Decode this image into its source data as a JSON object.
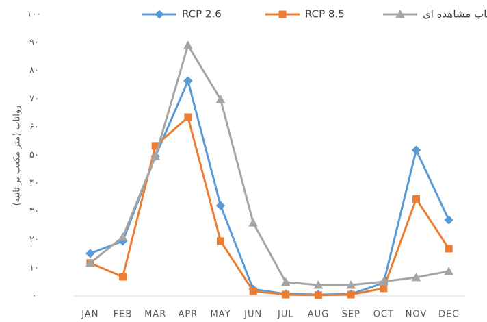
{
  "chart_data": {
    "type": "line",
    "y_label": "رواناب (متر مکعب بر ثانیه)",
    "categories": [
      "JAN",
      "FEB",
      "MAR",
      "APR",
      "MAY",
      "JUN",
      "JUL",
      "AUG",
      "SEP",
      "OCT",
      "NOV",
      "DEC"
    ],
    "series": [
      {
        "name": "RCP 2.6",
        "color": "#5b9bd5",
        "marker": "diamond",
        "values": [
          15.1,
          19.5,
          49.6,
          76.4,
          32.1,
          2.4,
          0.7,
          0.5,
          0.7,
          4.6,
          51.8,
          27
        ]
      },
      {
        "name": "RCP 8.5",
        "color": "#ed7d31",
        "marker": "square",
        "values": [
          11.7,
          6.8,
          53.3,
          63.5,
          19.5,
          1.7,
          0.5,
          0.3,
          0.5,
          2.7,
          34.5,
          16.8
        ]
      },
      {
        "name": "رواناب مشاهده ای",
        "color": "#a5a5a5",
        "marker": "triangle",
        "values": [
          11.7,
          20.9,
          49.6,
          89,
          69.8,
          26,
          4.9,
          3.9,
          3.9,
          5.1,
          6.6,
          8.8
        ]
      }
    ],
    "ylim": [
      0,
      100
    ],
    "yticks": [
      {
        "value": 0,
        "label": "۰"
      },
      {
        "value": 10,
        "label": "۱۰"
      },
      {
        "value": 20,
        "label": "۲۰"
      },
      {
        "value": 30,
        "label": "۳۰"
      },
      {
        "value": 40,
        "label": "۴۰"
      },
      {
        "value": 50,
        "label": "۵۰"
      },
      {
        "value": 60,
        "label": "۶۰"
      },
      {
        "value": 70,
        "label": "۷۰"
      },
      {
        "value": 80,
        "label": "۸۰"
      },
      {
        "value": 90,
        "label": "۹۰"
      },
      {
        "value": 100,
        "label": "۱۰۰"
      }
    ],
    "grid": false,
    "legend": "top"
  }
}
